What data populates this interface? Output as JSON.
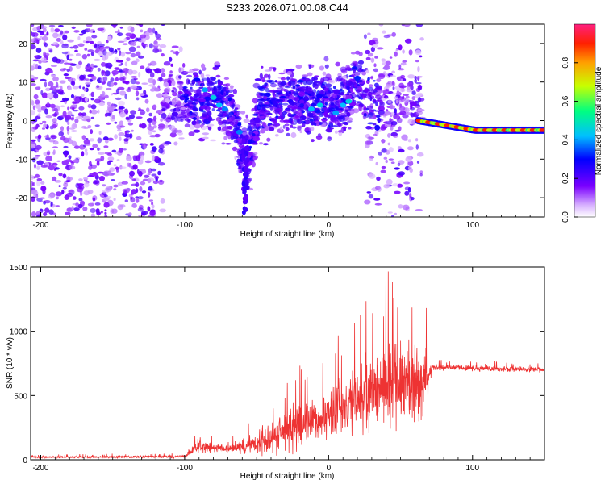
{
  "title": "S233.2026.071.00.08.C44",
  "colors": {
    "snr_line": "#ee3333",
    "frame": "#000000",
    "background": "#ffffff"
  },
  "chart_data": [
    {
      "type": "heatmap",
      "xlabel": "Height of straight line (km)",
      "ylabel": "Frequency (Hz)",
      "xlim": [
        -207,
        150
      ],
      "ylim": [
        -25,
        25
      ],
      "x_ticks": [
        -200,
        -100,
        0,
        100
      ],
      "y_ticks": [
        -20,
        -10,
        0,
        10,
        20
      ],
      "x_tick_labels": [
        "-200",
        "-100",
        "0",
        "100"
      ],
      "y_tick_labels": [
        "-20",
        "-10",
        "0",
        "10",
        "20"
      ],
      "colorbar": {
        "label": "Normalized spectral amplitude",
        "range": [
          0,
          1
        ],
        "ticks": [
          0.0,
          0.2,
          0.4,
          0.6,
          0.8
        ],
        "tick_labels": [
          "0.0",
          "0.2",
          "0.4",
          "0.6",
          "0.8"
        ]
      },
      "features": [
        {
          "name": "broadband scatter",
          "x_range": [
            -207,
            65
          ],
          "amplitude": 0.15
        },
        {
          "name": "dip near -60 km",
          "x": -58,
          "frequency_min": -24,
          "amplitude": 0.2
        },
        {
          "name": "peak near 20 km",
          "x": 20,
          "frequency": 12,
          "amplitude": 0.25
        },
        {
          "name": "steady tone",
          "x_range": [
            62,
            150
          ],
          "frequency_start": 0,
          "frequency_end": -2.5,
          "amplitude": 0.9
        }
      ]
    },
    {
      "type": "line",
      "xlabel": "Height of straight line (km)",
      "ylabel": "SNR (10 * v/v)",
      "xlim": [
        -207,
        150
      ],
      "ylim": [
        0,
        1500
      ],
      "x_ticks": [
        -200,
        -100,
        0,
        100
      ],
      "y_ticks": [
        0,
        500,
        1000,
        1500
      ],
      "x_tick_labels": [
        "-200",
        "-100",
        "0",
        "100"
      ],
      "y_tick_labels": [
        "0",
        "500",
        "1000",
        "1500"
      ],
      "series": [
        {
          "name": "SNR",
          "envelope": [
            {
              "x": -207,
              "mean": 20,
              "spread": 10
            },
            {
              "x": -100,
              "mean": 25,
              "spread": 15
            },
            {
              "x": -90,
              "mean": 110,
              "spread": 80
            },
            {
              "x": -70,
              "mean": 80,
              "spread": 40
            },
            {
              "x": -50,
              "mean": 130,
              "spread": 120
            },
            {
              "x": -30,
              "mean": 220,
              "spread": 220
            },
            {
              "x": -10,
              "mean": 300,
              "spread": 260
            },
            {
              "x": 10,
              "mean": 420,
              "spread": 330
            },
            {
              "x": 30,
              "mean": 550,
              "spread": 420
            },
            {
              "x": 50,
              "mean": 620,
              "spread": 480
            },
            {
              "x": 68,
              "mean": 600,
              "spread": 450
            },
            {
              "x": 72,
              "mean": 720,
              "spread": 30
            },
            {
              "x": 150,
              "mean": 700,
              "spread": 30
            }
          ]
        }
      ]
    }
  ]
}
